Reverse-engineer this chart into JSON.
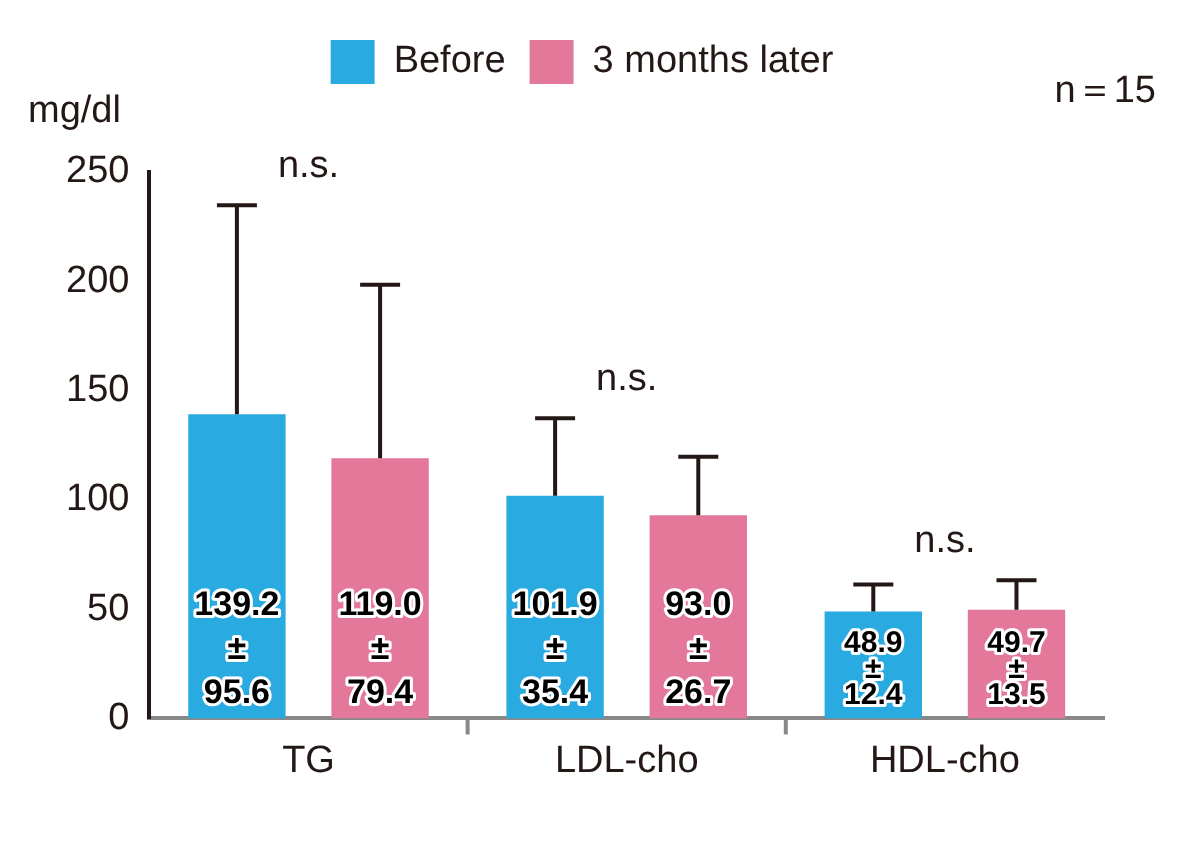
{
  "chart_data": {
    "type": "bar",
    "ylabel": "mg/dl",
    "categories": [
      "TG",
      "LDL-cho",
      "HDL-cho"
    ],
    "series": [
      {
        "name": "Before",
        "color": "#29abe2",
        "values": [
          139.2,
          101.9,
          48.9
        ],
        "errors": [
          [
            139.2,
            234.8
          ],
          [
            101.9,
            137.3
          ],
          [
            48.9,
            61.3
          ]
        ],
        "value_labels": [
          "139.2\n±\n95.6",
          "101.9\n±\n35.4",
          "48.9\n±\n12.4"
        ]
      },
      {
        "name": "3 months later",
        "color": "#e4789a",
        "values": [
          119.0,
          93.0,
          49.7
        ],
        "errors": [
          [
            119.0,
            198.4
          ],
          [
            93.0,
            119.7
          ],
          [
            49.7,
            63.2
          ]
        ],
        "value_labels": [
          "119.0\n±\n79.4",
          "93.0\n±\n26.7",
          "49.7\n±\n13.5"
        ]
      }
    ],
    "ylim": [
      0,
      250
    ],
    "yticks": [
      0,
      50,
      100,
      150,
      200,
      250
    ],
    "grid": false,
    "legend": "top",
    "annotations": [
      "n.s.",
      "n.s.",
      "n.s.",
      "n＝15"
    ]
  }
}
